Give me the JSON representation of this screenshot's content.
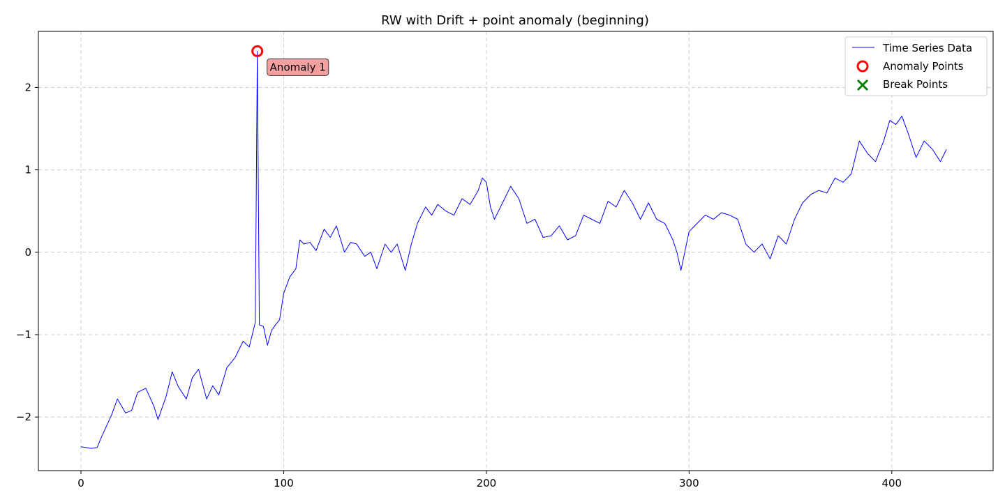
{
  "chart_data": {
    "type": "line",
    "title": "RW with Drift + point anomaly (beginning)",
    "xlabel": "",
    "ylabel": "",
    "xlim": [
      -21,
      450
    ],
    "ylim": [
      -2.65,
      2.68
    ],
    "xticks": [
      0,
      100,
      200,
      300,
      400
    ],
    "yticks": [
      -2,
      -1,
      0,
      1,
      2
    ],
    "grid": true,
    "legend_position": "top-right",
    "series": [
      {
        "name": "Time Series Data",
        "color": "#0000ff",
        "x": [
          0,
          5,
          8,
          10,
          15,
          18,
          22,
          25,
          28,
          32,
          36,
          38,
          42,
          45,
          48,
          52,
          55,
          58,
          62,
          65,
          68,
          72,
          76,
          80,
          83,
          85,
          86,
          87,
          88,
          90,
          92,
          94,
          96,
          98,
          100,
          103,
          106,
          108,
          110,
          113,
          116,
          120,
          123,
          126,
          130,
          133,
          136,
          140,
          143,
          146,
          150,
          153,
          156,
          160,
          163,
          166,
          170,
          173,
          176,
          180,
          184,
          188,
          192,
          196,
          198,
          200,
          202,
          204,
          208,
          212,
          216,
          220,
          224,
          228,
          232,
          236,
          240,
          244,
          248,
          252,
          256,
          260,
          264,
          268,
          272,
          276,
          280,
          284,
          288,
          292,
          294,
          296,
          300,
          304,
          308,
          312,
          316,
          320,
          324,
          328,
          332,
          336,
          340,
          344,
          348,
          352,
          356,
          360,
          364,
          368,
          372,
          376,
          380,
          384,
          388,
          392,
          396,
          399,
          402,
          405,
          408,
          410,
          412,
          416,
          420,
          424,
          427
        ],
        "values": [
          -2.36,
          -2.38,
          -2.37,
          -2.25,
          -1.98,
          -1.78,
          -1.95,
          -1.92,
          -1.7,
          -1.65,
          -1.87,
          -2.03,
          -1.75,
          -1.45,
          -1.63,
          -1.78,
          -1.52,
          -1.42,
          -1.78,
          -1.62,
          -1.73,
          -1.4,
          -1.28,
          -1.08,
          -1.15,
          -0.95,
          -0.85,
          2.44,
          -0.88,
          -0.9,
          -1.13,
          -0.95,
          -0.88,
          -0.82,
          -0.5,
          -0.3,
          -0.2,
          0.15,
          0.1,
          0.12,
          0.02,
          0.28,
          0.18,
          0.32,
          0.0,
          0.12,
          0.1,
          -0.05,
          0.0,
          -0.2,
          0.1,
          0.0,
          0.1,
          -0.22,
          0.1,
          0.35,
          0.55,
          0.45,
          0.58,
          0.5,
          0.45,
          0.65,
          0.58,
          0.75,
          0.9,
          0.85,
          0.55,
          0.4,
          0.6,
          0.8,
          0.65,
          0.35,
          0.4,
          0.18,
          0.2,
          0.32,
          0.15,
          0.2,
          0.45,
          0.4,
          0.35,
          0.62,
          0.55,
          0.75,
          0.6,
          0.4,
          0.6,
          0.4,
          0.35,
          0.15,
          0.0,
          -0.22,
          0.25,
          0.35,
          0.45,
          0.4,
          0.48,
          0.45,
          0.4,
          0.1,
          0.0,
          0.1,
          -0.08,
          0.2,
          0.1,
          0.4,
          0.6,
          0.7,
          0.75,
          0.72,
          0.9,
          0.85,
          0.95,
          1.35,
          1.2,
          1.1,
          1.35,
          1.6,
          1.55,
          1.65,
          1.45,
          1.3,
          1.15,
          1.35,
          1.25,
          1.1,
          1.25
        ]
      }
    ],
    "anomaly_points": {
      "name": "Anomaly Points",
      "color": "#ff0000",
      "points": [
        {
          "x": 87,
          "y": 2.44
        }
      ]
    },
    "break_points": {
      "name": "Break Points",
      "color": "#008000",
      "points": []
    },
    "annotations": [
      {
        "text": "Anomaly 1",
        "x": 87,
        "y": 2.44
      }
    ]
  }
}
